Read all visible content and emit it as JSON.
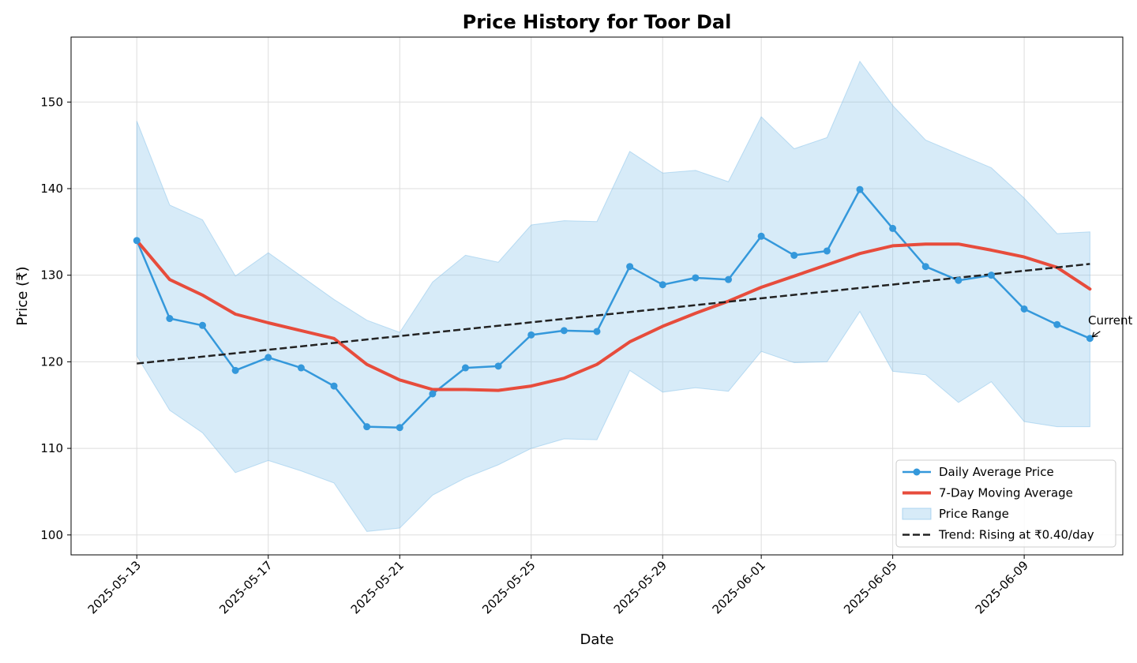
{
  "chart_data": {
    "type": "line",
    "title": "Price History for Toor Dal",
    "xlabel": "Date",
    "ylabel": "Price (₹)",
    "x": [
      "2025-05-13",
      "2025-05-14",
      "2025-05-15",
      "2025-05-16",
      "2025-05-17",
      "2025-05-18",
      "2025-05-19",
      "2025-05-20",
      "2025-05-21",
      "2025-05-22",
      "2025-05-23",
      "2025-05-24",
      "2025-05-25",
      "2025-05-26",
      "2025-05-27",
      "2025-05-28",
      "2025-05-29",
      "2025-05-30",
      "2025-05-31",
      "2025-06-01",
      "2025-06-02",
      "2025-06-03",
      "2025-06-04",
      "2025-06-05",
      "2025-06-06",
      "2025-06-07",
      "2025-06-08",
      "2025-06-09",
      "2025-06-10",
      "2025-06-11"
    ],
    "xticks": [
      "2025-05-13",
      "2025-05-17",
      "2025-05-21",
      "2025-05-25",
      "2025-05-29",
      "2025-06-01",
      "2025-06-05",
      "2025-06-09"
    ],
    "xlim": [
      "2025-05-11",
      "2025-06-12"
    ],
    "ylim": [
      97.7,
      157.5
    ],
    "yticks": [
      100,
      110,
      120,
      130,
      140,
      150
    ],
    "grid": true,
    "legend_position": "bottom-right",
    "series": [
      {
        "name": "Daily Average Price",
        "style": "line-markers",
        "color": "#3498db",
        "values": [
          134.0,
          125.0,
          124.2,
          119.0,
          120.5,
          119.3,
          117.2,
          112.5,
          112.4,
          116.3,
          119.3,
          119.5,
          123.1,
          123.6,
          123.5,
          131.0,
          128.9,
          129.7,
          129.5,
          134.5,
          132.3,
          132.8,
          139.9,
          135.4,
          131.0,
          129.4,
          130.0,
          126.1,
          124.3,
          122.7
        ]
      },
      {
        "name": "7-Day Moving Average",
        "style": "line",
        "color": "#e74c3c",
        "values": [
          134.0,
          129.5,
          127.7,
          125.5,
          124.5,
          123.6,
          122.7,
          119.7,
          117.9,
          116.8,
          116.8,
          116.7,
          117.2,
          118.1,
          119.7,
          122.3,
          124.1,
          125.6,
          127.0,
          128.6,
          129.9,
          131.2,
          132.5,
          133.4,
          133.6,
          133.6,
          132.9,
          132.1,
          130.9,
          128.4
        ]
      },
      {
        "name": "Price Range",
        "style": "band",
        "color": "#85c1e9",
        "lower": [
          120.7,
          114.4,
          111.8,
          107.2,
          108.6,
          107.4,
          106.0,
          100.4,
          100.8,
          104.6,
          106.6,
          108.1,
          110.0,
          111.1,
          111.0,
          119.0,
          116.5,
          117.0,
          116.6,
          121.2,
          119.9,
          120.0,
          125.8,
          118.9,
          118.5,
          115.3,
          117.7,
          113.1,
          112.5,
          112.5
        ],
        "upper": [
          147.8,
          138.1,
          136.4,
          129.9,
          132.6,
          129.9,
          127.2,
          124.8,
          123.4,
          129.2,
          132.3,
          131.5,
          135.8,
          136.3,
          136.2,
          144.3,
          141.8,
          142.1,
          140.8,
          148.3,
          144.6,
          145.9,
          154.7,
          149.6,
          145.6,
          144.0,
          142.4,
          138.9,
          134.8,
          135.0
        ]
      },
      {
        "name": "Trend: Rising at ₹0.40/day",
        "style": "dashed",
        "color": "#222222",
        "from": [
          "2025-05-13",
          119.8
        ],
        "to": [
          "2025-06-11",
          131.3
        ]
      }
    ],
    "annotations": [
      {
        "text": "Current",
        "target": [
          "2025-06-11",
          122.7
        ]
      }
    ]
  }
}
